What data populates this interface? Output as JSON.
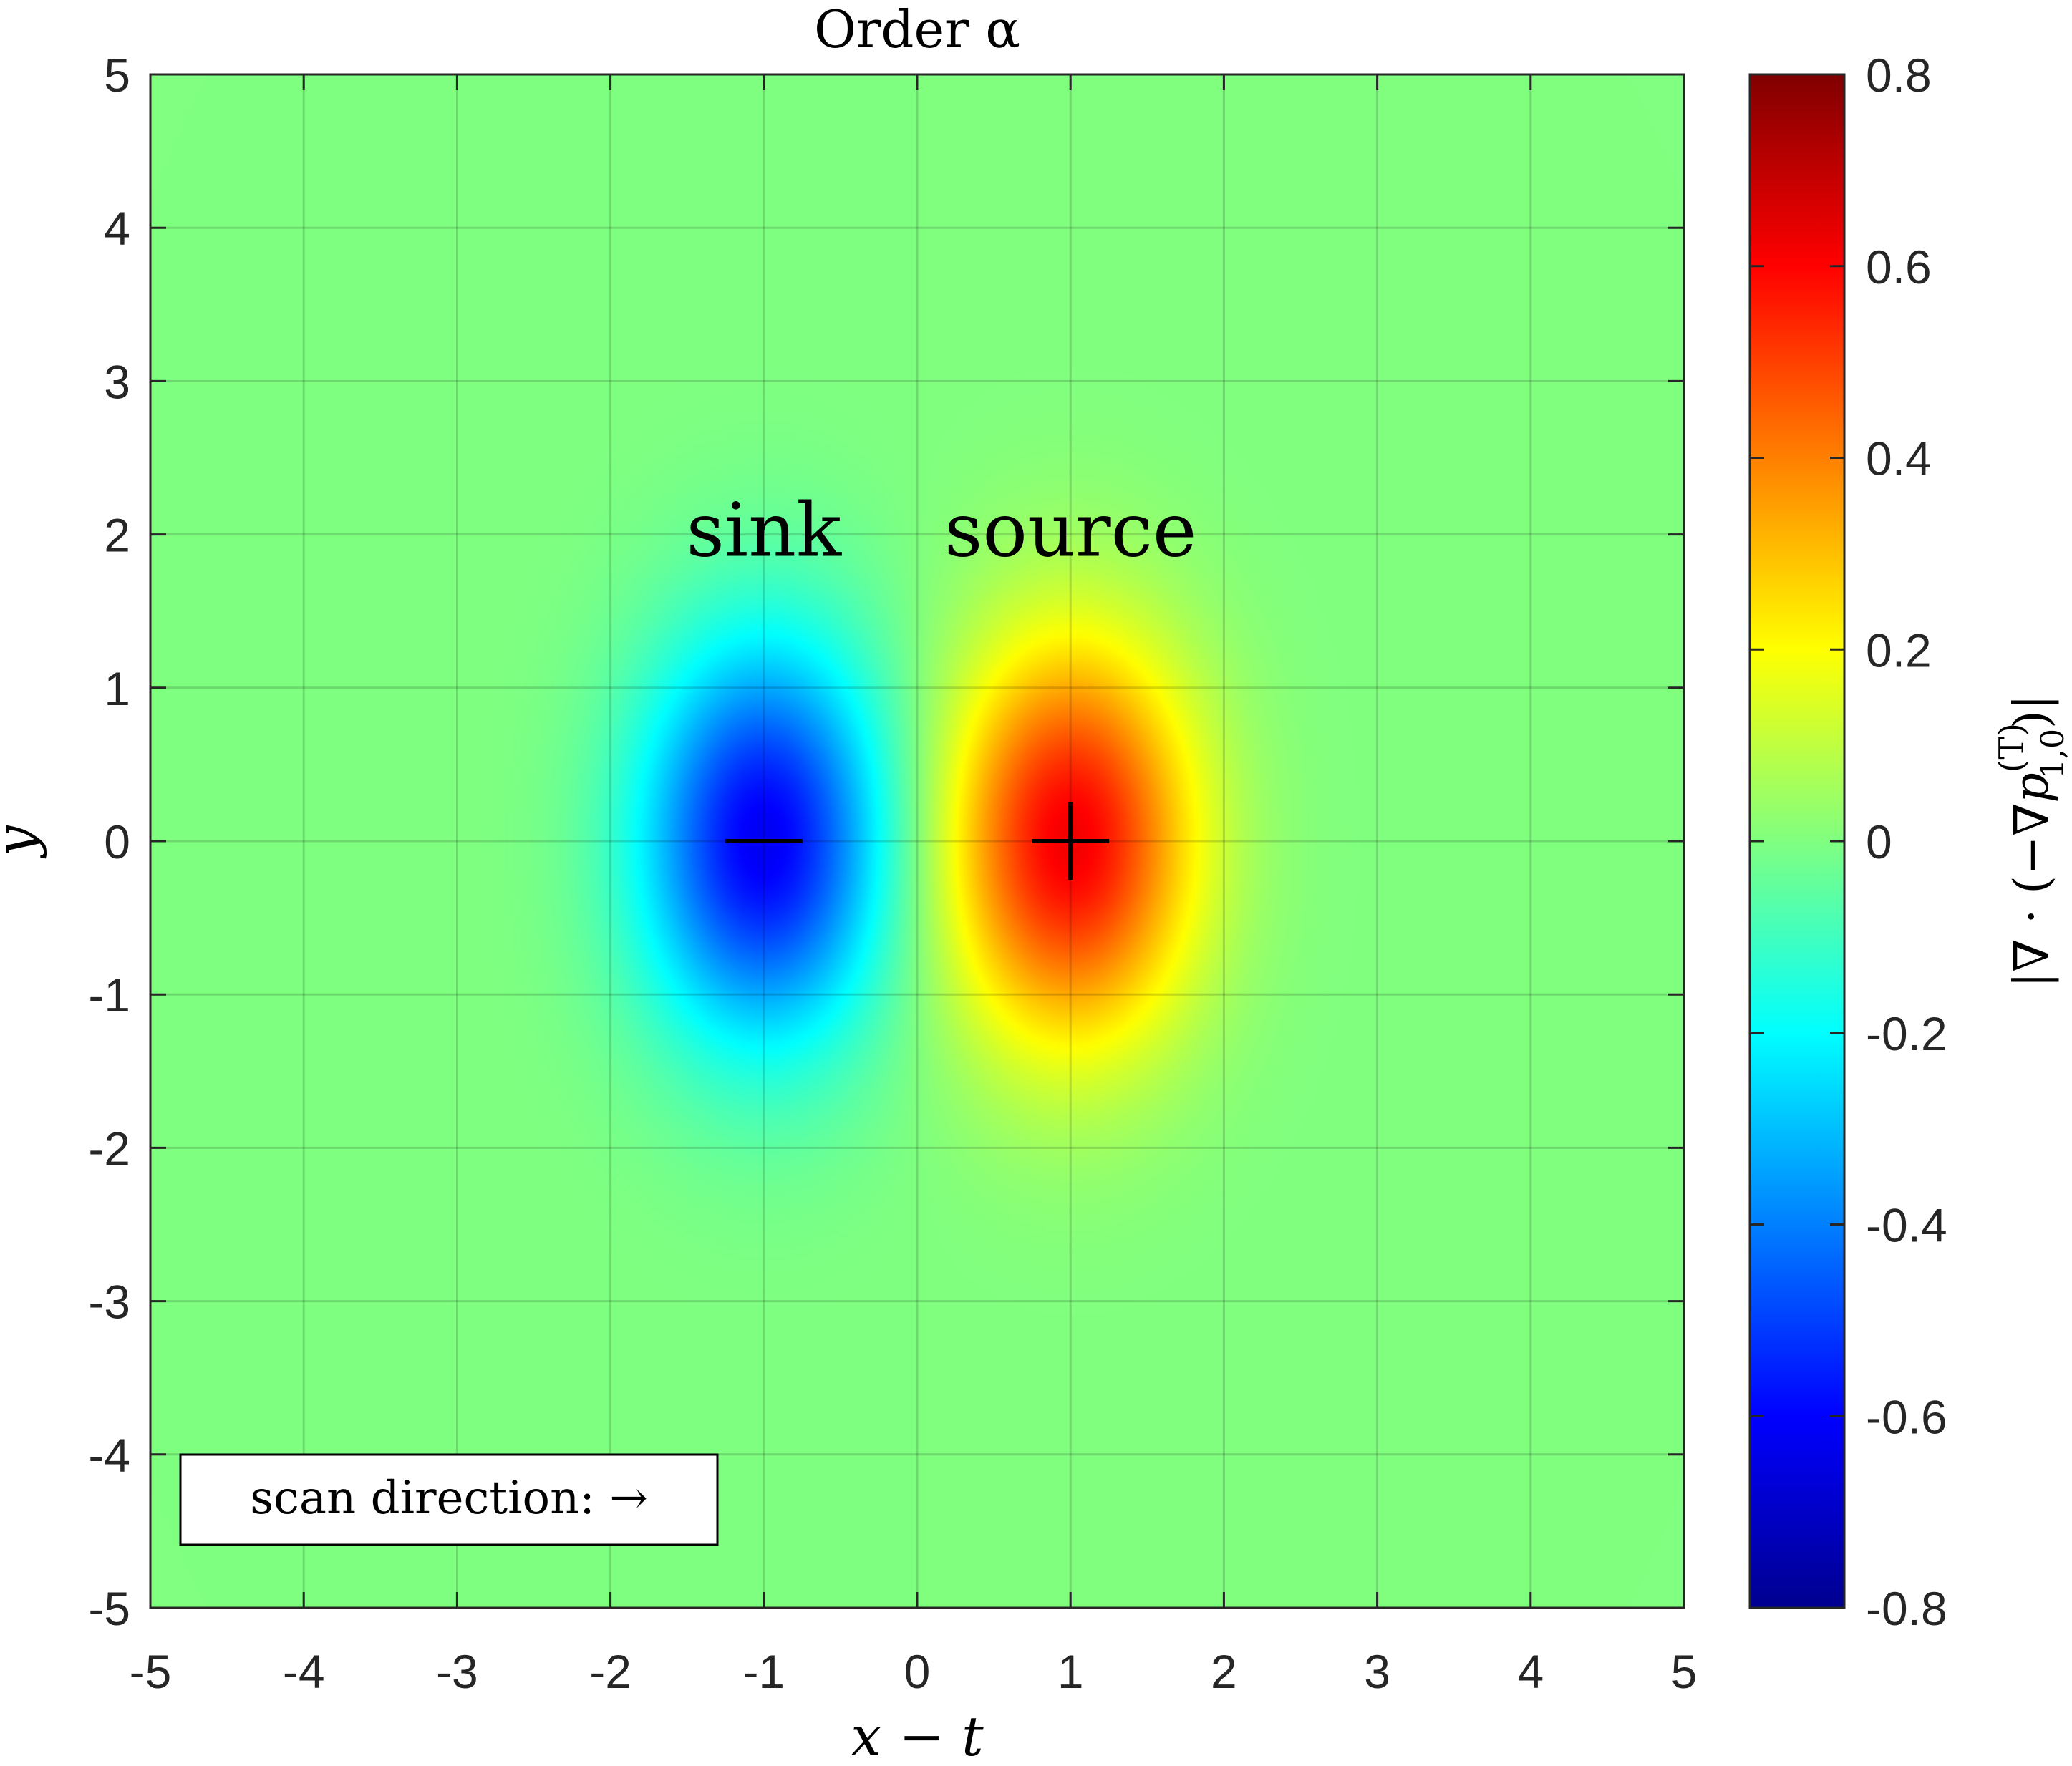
{
  "chart_data": {
    "type": "heatmap",
    "title": "Order α",
    "xlabel": "x − t",
    "ylabel": "y",
    "xlim": [
      -5,
      5
    ],
    "ylim": [
      -5,
      5
    ],
    "xticks": [
      "-5",
      "-4",
      "-3",
      "-2",
      "-1",
      "0",
      "1",
      "2",
      "3",
      "4",
      "5"
    ],
    "yticks": [
      "-5",
      "-4",
      "-3",
      "-2",
      "-1",
      "0",
      "1",
      "2",
      "3",
      "4",
      "5"
    ],
    "grid": true,
    "colormap": "jet",
    "colorbar": {
      "label": "|∇ · (−∇p(T)1,0)|",
      "label_parts": {
        "prefix": "|∇ · (−∇",
        "p": "p",
        "superscript": "(T)",
        "subscript": "1,0",
        "suffix": ")|"
      },
      "lim": [
        -0.8,
        0.8
      ],
      "ticks": [
        "0.8",
        "0.6",
        "0.4",
        "0.2",
        "0",
        "-0.2",
        "-0.4",
        "-0.6",
        "-0.8"
      ]
    },
    "extrema": [
      {
        "label": "sink",
        "marker": "−",
        "x": -1,
        "y": 0,
        "value": -0.62
      },
      {
        "label": "source",
        "marker": "+",
        "x": 1,
        "y": 0,
        "value": 0.62
      }
    ],
    "legend": {
      "text": "scan direction: →",
      "placement": "bottom-left"
    }
  }
}
